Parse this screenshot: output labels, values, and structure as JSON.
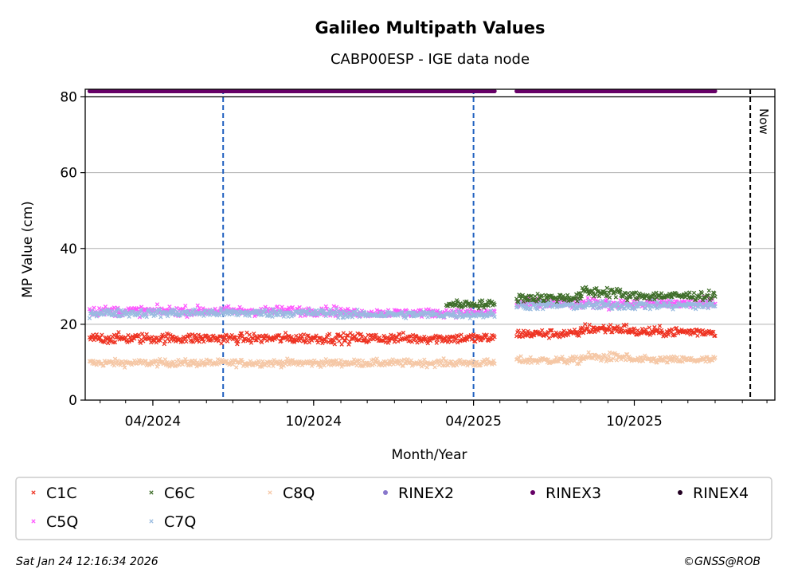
{
  "chart_data": {
    "type": "scatter",
    "title": "Galileo Multipath Values",
    "subtitle": "CABP00ESP - IGE data node",
    "xlabel": "Month/Year",
    "ylabel": "MP Value (cm)",
    "ylim": [
      0,
      82
    ],
    "xlim": [
      "2024-01-15",
      "2026-03-10"
    ],
    "x_ticks": [
      {
        "label": "04/2024",
        "date": "2024-04-01"
      },
      {
        "label": "10/2024",
        "date": "2024-10-01"
      },
      {
        "label": "04/2025",
        "date": "2025-04-01"
      },
      {
        "label": "10/2025",
        "date": "2025-10-01"
      }
    ],
    "y_ticks": [
      0,
      20,
      40,
      60,
      80
    ],
    "grid": "horizontal",
    "legend_position": "bottom",
    "now_label": "Now",
    "now_date": "2026-02-10",
    "vertical_markers": [
      {
        "date": "2024-06-20",
        "color": "#1f5fbf"
      },
      {
        "date": "2025-04-01",
        "color": "#1f5fbf"
      }
    ],
    "series": [
      {
        "name": "C1C",
        "marker": "x",
        "color": "#ee3322",
        "segments": [
          {
            "start": "2024-01-20",
            "end": "2025-04-25",
            "value": 16.3,
            "spread": 1.4
          },
          {
            "start": "2025-05-20",
            "end": "2025-08-01",
            "value": 17.5,
            "spread": 1.2
          },
          {
            "start": "2025-08-01",
            "end": "2025-09-25",
            "value": 18.8,
            "spread": 1.4
          },
          {
            "start": "2025-09-25",
            "end": "2026-01-01",
            "value": 18.0,
            "spread": 1.3
          }
        ]
      },
      {
        "name": "C5Q",
        "marker": "x",
        "color": "#ff55ff",
        "segments": [
          {
            "start": "2024-01-20",
            "end": "2024-11-01",
            "value": 23.5,
            "spread": 1.3
          },
          {
            "start": "2024-11-01",
            "end": "2025-04-25",
            "value": 23.0,
            "spread": 1.1
          },
          {
            "start": "2025-05-20",
            "end": "2026-01-01",
            "value": 25.5,
            "spread": 1.4
          }
        ]
      },
      {
        "name": "C6C",
        "marker": "x",
        "color": "#3f6e2a",
        "segments": [
          {
            "start": "2025-03-01",
            "end": "2025-04-25",
            "value": 25.3,
            "spread": 1.1
          },
          {
            "start": "2025-05-20",
            "end": "2025-08-01",
            "value": 27.0,
            "spread": 1.2
          },
          {
            "start": "2025-08-01",
            "end": "2025-09-15",
            "value": 28.5,
            "spread": 1.6
          },
          {
            "start": "2025-09-15",
            "end": "2026-01-01",
            "value": 27.5,
            "spread": 1.2
          }
        ]
      },
      {
        "name": "C7Q",
        "marker": "x",
        "color": "#99bbe0",
        "segments": [
          {
            "start": "2024-01-20",
            "end": "2024-11-01",
            "value": 23.0,
            "spread": 1.1
          },
          {
            "start": "2024-11-01",
            "end": "2025-04-25",
            "value": 22.6,
            "spread": 1.0
          },
          {
            "start": "2025-05-20",
            "end": "2026-01-01",
            "value": 25.0,
            "spread": 1.2
          }
        ]
      },
      {
        "name": "C8Q",
        "marker": "x",
        "color": "#f5c7a5",
        "segments": [
          {
            "start": "2024-01-20",
            "end": "2025-04-25",
            "value": 9.8,
            "spread": 1.0
          },
          {
            "start": "2025-05-20",
            "end": "2025-08-01",
            "value": 10.5,
            "spread": 1.0
          },
          {
            "start": "2025-08-01",
            "end": "2025-09-25",
            "value": 11.3,
            "spread": 1.3
          },
          {
            "start": "2025-09-25",
            "end": "2026-01-01",
            "value": 10.6,
            "spread": 1.0
          }
        ]
      },
      {
        "name": "RINEX2",
        "marker": "o",
        "color": "#8877cc",
        "segments": []
      },
      {
        "name": "RINEX3",
        "marker": "o",
        "color": "#660066",
        "segments": [
          {
            "start": "2024-01-20",
            "end": "2025-04-25",
            "value": 81.5,
            "spread": 0
          },
          {
            "start": "2025-05-20",
            "end": "2026-01-01",
            "value": 81.5,
            "spread": 0
          }
        ]
      },
      {
        "name": "RINEX4",
        "marker": "o",
        "color": "#220022",
        "segments": []
      }
    ]
  },
  "footer": {
    "timestamp": "Sat Jan 24 12:16:34 2026",
    "credit": "©GNSS@ROB"
  }
}
